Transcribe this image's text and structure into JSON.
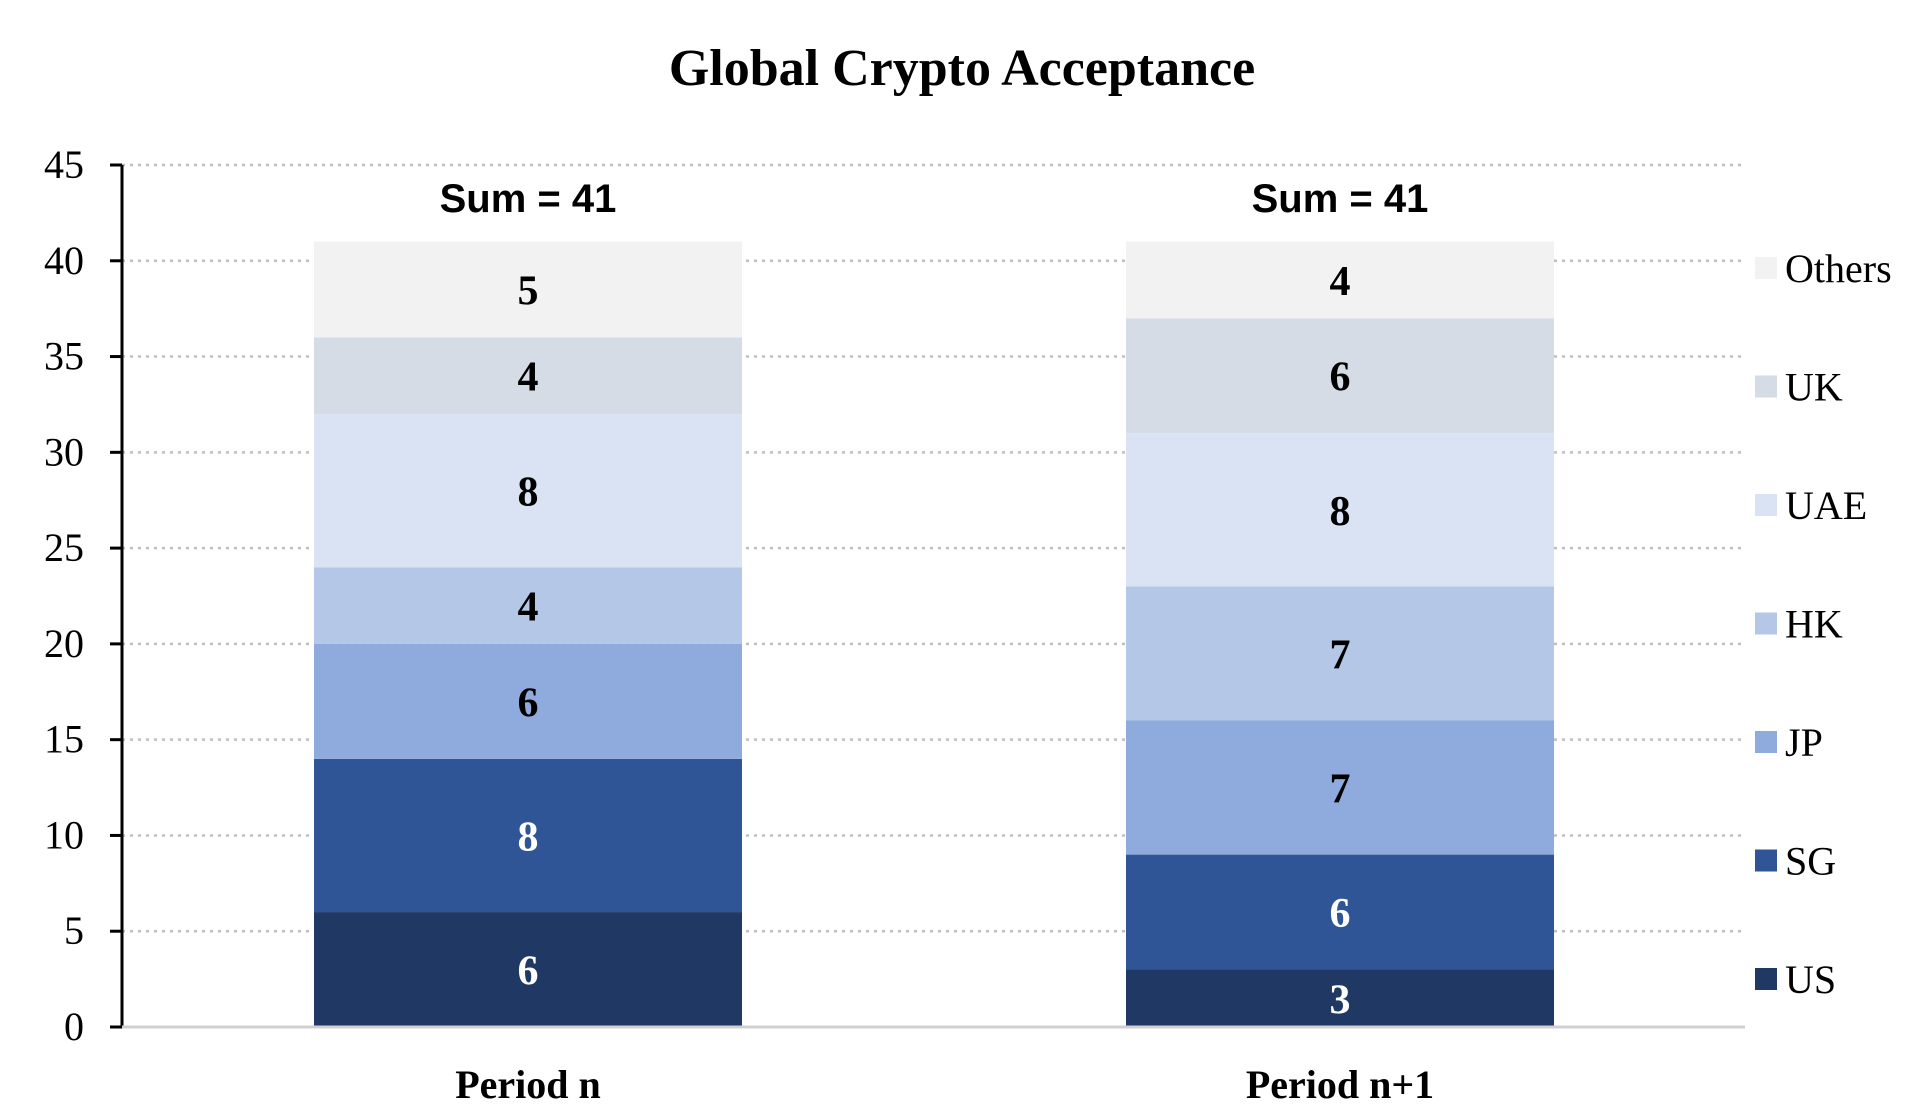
{
  "chart_data": {
    "type": "bar",
    "stacked": true,
    "title": "Global Crypto Acceptance",
    "xlabel": "",
    "ylabel": "",
    "ylim": [
      0,
      45
    ],
    "yticks": [
      0,
      5,
      10,
      15,
      20,
      25,
      30,
      35,
      40,
      45
    ],
    "grid": "horizontal-dotted",
    "legend_position": "right",
    "categories": [
      "Period n",
      "Period n+1"
    ],
    "totals_labels": [
      "Sum = 41",
      "Sum = 41"
    ],
    "series": [
      {
        "name": "US",
        "values": [
          6,
          3
        ],
        "color": "#203864",
        "label_color": "#ffffff"
      },
      {
        "name": "SG",
        "values": [
          8,
          6
        ],
        "color": "#2f5597",
        "label_color": "#ffffff"
      },
      {
        "name": "JP",
        "values": [
          6,
          7
        ],
        "color": "#8faadc",
        "label_color": "#000000"
      },
      {
        "name": "HK",
        "values": [
          4,
          7
        ],
        "color": "#b4c7e7",
        "label_color": "#000000"
      },
      {
        "name": "UAE",
        "values": [
          8,
          8
        ],
        "color": "#dae3f3",
        "label_color": "#000000"
      },
      {
        "name": "UK",
        "values": [
          4,
          6
        ],
        "color": "#d6dce5",
        "label_color": "#000000"
      },
      {
        "name": "Others",
        "values": [
          5,
          4
        ],
        "color": "#f2f2f2",
        "label_color": "#000000"
      }
    ]
  }
}
